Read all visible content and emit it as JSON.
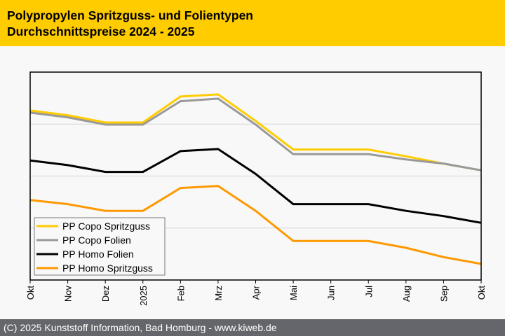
{
  "header": {
    "title_line1": "Polypropylen Spritzguss- und Folientypen",
    "title_line2": "Durchschnittspreise 2024 - 2025"
  },
  "footer": {
    "text": "(C) 2025 Kunststoff Information, Bad Homburg - www.kiweb.de"
  },
  "colors": {
    "header_bg": "#ffcc00",
    "footer_bg": "#64666b",
    "plot_bg": "#f8f8f8",
    "gridline": "#d4d4d4"
  },
  "chart_data": {
    "type": "line",
    "title": "Polypropylen Spritzguss- und Folientypen Durchschnittspreise 2024 - 2025",
    "xlabel": "",
    "ylabel": "",
    "y_units_note": "no y-axis tick labels shown; values in relative gridline units (0 = bottom, 4 = top)",
    "ylim": [
      0,
      4
    ],
    "grid": true,
    "legend_position": "bottom-left",
    "categories": [
      "Okt",
      "Nov",
      "Dez",
      "2025",
      "Feb",
      "Mrz",
      "Apr",
      "Mai",
      "Jun",
      "Jul",
      "Aug",
      "Sep",
      "Okt"
    ],
    "series": [
      {
        "name": "PP Copo Spritzguss",
        "color": "#ffcc00",
        "values": [
          3.26,
          3.17,
          3.03,
          3.03,
          3.53,
          3.57,
          3.06,
          2.51,
          2.51,
          2.51,
          2.38,
          2.24,
          2.11
        ]
      },
      {
        "name": "PP Copo Folien",
        "color": "#999999",
        "values": [
          3.22,
          3.13,
          2.99,
          2.99,
          3.44,
          3.49,
          2.99,
          2.42,
          2.42,
          2.42,
          2.32,
          2.24,
          2.11
        ]
      },
      {
        "name": "PP Homo Folien",
        "color": "#000000",
        "values": [
          2.3,
          2.21,
          2.08,
          2.08,
          2.48,
          2.52,
          2.04,
          1.46,
          1.46,
          1.46,
          1.33,
          1.23,
          1.1
        ]
      },
      {
        "name": "PP Homo Spritzguss",
        "color": "#ff9900",
        "values": [
          1.54,
          1.46,
          1.33,
          1.33,
          1.77,
          1.81,
          1.33,
          0.75,
          0.75,
          0.75,
          0.62,
          0.44,
          0.31
        ]
      }
    ]
  }
}
